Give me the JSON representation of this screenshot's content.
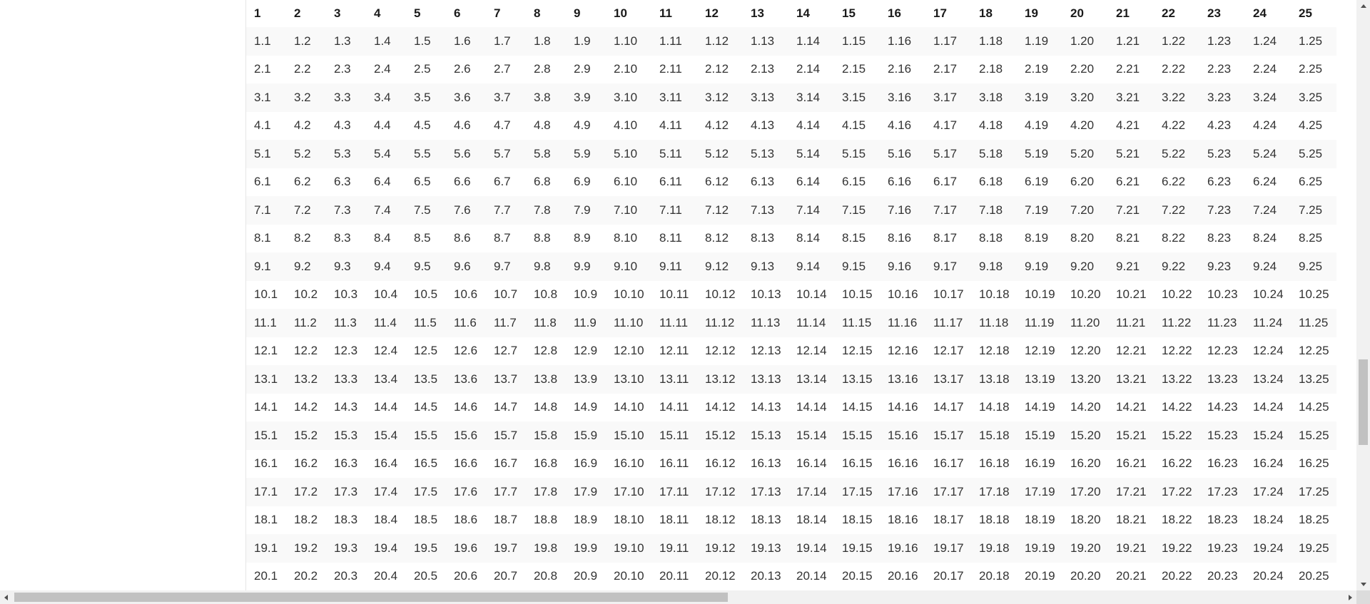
{
  "table": {
    "headers": [
      "1",
      "2",
      "3",
      "4",
      "5",
      "6",
      "7",
      "8",
      "9",
      "10",
      "11",
      "12",
      "13",
      "14",
      "15",
      "16",
      "17",
      "18",
      "19",
      "20",
      "21",
      "22",
      "23",
      "24",
      "25"
    ],
    "rows": [
      [
        "1.1",
        "1.2",
        "1.3",
        "1.4",
        "1.5",
        "1.6",
        "1.7",
        "1.8",
        "1.9",
        "1.10",
        "1.11",
        "1.12",
        "1.13",
        "1.14",
        "1.15",
        "1.16",
        "1.17",
        "1.18",
        "1.19",
        "1.20",
        "1.21",
        "1.22",
        "1.23",
        "1.24",
        "1.25"
      ],
      [
        "2.1",
        "2.2",
        "2.3",
        "2.4",
        "2.5",
        "2.6",
        "2.7",
        "2.8",
        "2.9",
        "2.10",
        "2.11",
        "2.12",
        "2.13",
        "2.14",
        "2.15",
        "2.16",
        "2.17",
        "2.18",
        "2.19",
        "2.20",
        "2.21",
        "2.22",
        "2.23",
        "2.24",
        "2.25"
      ],
      [
        "3.1",
        "3.2",
        "3.3",
        "3.4",
        "3.5",
        "3.6",
        "3.7",
        "3.8",
        "3.9",
        "3.10",
        "3.11",
        "3.12",
        "3.13",
        "3.14",
        "3.15",
        "3.16",
        "3.17",
        "3.18",
        "3.19",
        "3.20",
        "3.21",
        "3.22",
        "3.23",
        "3.24",
        "3.25"
      ],
      [
        "4.1",
        "4.2",
        "4.3",
        "4.4",
        "4.5",
        "4.6",
        "4.7",
        "4.8",
        "4.9",
        "4.10",
        "4.11",
        "4.12",
        "4.13",
        "4.14",
        "4.15",
        "4.16",
        "4.17",
        "4.18",
        "4.19",
        "4.20",
        "4.21",
        "4.22",
        "4.23",
        "4.24",
        "4.25"
      ],
      [
        "5.1",
        "5.2",
        "5.3",
        "5.4",
        "5.5",
        "5.6",
        "5.7",
        "5.8",
        "5.9",
        "5.10",
        "5.11",
        "5.12",
        "5.13",
        "5.14",
        "5.15",
        "5.16",
        "5.17",
        "5.18",
        "5.19",
        "5.20",
        "5.21",
        "5.22",
        "5.23",
        "5.24",
        "5.25"
      ],
      [
        "6.1",
        "6.2",
        "6.3",
        "6.4",
        "6.5",
        "6.6",
        "6.7",
        "6.8",
        "6.9",
        "6.10",
        "6.11",
        "6.12",
        "6.13",
        "6.14",
        "6.15",
        "6.16",
        "6.17",
        "6.18",
        "6.19",
        "6.20",
        "6.21",
        "6.22",
        "6.23",
        "6.24",
        "6.25"
      ],
      [
        "7.1",
        "7.2",
        "7.3",
        "7.4",
        "7.5",
        "7.6",
        "7.7",
        "7.8",
        "7.9",
        "7.10",
        "7.11",
        "7.12",
        "7.13",
        "7.14",
        "7.15",
        "7.16",
        "7.17",
        "7.18",
        "7.19",
        "7.20",
        "7.21",
        "7.22",
        "7.23",
        "7.24",
        "7.25"
      ],
      [
        "8.1",
        "8.2",
        "8.3",
        "8.4",
        "8.5",
        "8.6",
        "8.7",
        "8.8",
        "8.9",
        "8.10",
        "8.11",
        "8.12",
        "8.13",
        "8.14",
        "8.15",
        "8.16",
        "8.17",
        "8.18",
        "8.19",
        "8.20",
        "8.21",
        "8.22",
        "8.23",
        "8.24",
        "8.25"
      ],
      [
        "9.1",
        "9.2",
        "9.3",
        "9.4",
        "9.5",
        "9.6",
        "9.7",
        "9.8",
        "9.9",
        "9.10",
        "9.11",
        "9.12",
        "9.13",
        "9.14",
        "9.15",
        "9.16",
        "9.17",
        "9.18",
        "9.19",
        "9.20",
        "9.21",
        "9.22",
        "9.23",
        "9.24",
        "9.25"
      ],
      [
        "10.1",
        "10.2",
        "10.3",
        "10.4",
        "10.5",
        "10.6",
        "10.7",
        "10.8",
        "10.9",
        "10.10",
        "10.11",
        "10.12",
        "10.13",
        "10.14",
        "10.15",
        "10.16",
        "10.17",
        "10.18",
        "10.19",
        "10.20",
        "10.21",
        "10.22",
        "10.23",
        "10.24",
        "10.25"
      ],
      [
        "11.1",
        "11.2",
        "11.3",
        "11.4",
        "11.5",
        "11.6",
        "11.7",
        "11.8",
        "11.9",
        "11.10",
        "11.11",
        "11.12",
        "11.13",
        "11.14",
        "11.15",
        "11.16",
        "11.17",
        "11.18",
        "11.19",
        "11.20",
        "11.21",
        "11.22",
        "11.23",
        "11.24",
        "11.25"
      ],
      [
        "12.1",
        "12.2",
        "12.3",
        "12.4",
        "12.5",
        "12.6",
        "12.7",
        "12.8",
        "12.9",
        "12.10",
        "12.11",
        "12.12",
        "12.13",
        "12.14",
        "12.15",
        "12.16",
        "12.17",
        "12.18",
        "12.19",
        "12.20",
        "12.21",
        "12.22",
        "12.23",
        "12.24",
        "12.25"
      ],
      [
        "13.1",
        "13.2",
        "13.3",
        "13.4",
        "13.5",
        "13.6",
        "13.7",
        "13.8",
        "13.9",
        "13.10",
        "13.11",
        "13.12",
        "13.13",
        "13.14",
        "13.15",
        "13.16",
        "13.17",
        "13.18",
        "13.19",
        "13.20",
        "13.21",
        "13.22",
        "13.23",
        "13.24",
        "13.25"
      ],
      [
        "14.1",
        "14.2",
        "14.3",
        "14.4",
        "14.5",
        "14.6",
        "14.7",
        "14.8",
        "14.9",
        "14.10",
        "14.11",
        "14.12",
        "14.13",
        "14.14",
        "14.15",
        "14.16",
        "14.17",
        "14.18",
        "14.19",
        "14.20",
        "14.21",
        "14.22",
        "14.23",
        "14.24",
        "14.25"
      ],
      [
        "15.1",
        "15.2",
        "15.3",
        "15.4",
        "15.5",
        "15.6",
        "15.7",
        "15.8",
        "15.9",
        "15.10",
        "15.11",
        "15.12",
        "15.13",
        "15.14",
        "15.15",
        "15.16",
        "15.17",
        "15.18",
        "15.19",
        "15.20",
        "15.21",
        "15.22",
        "15.23",
        "15.24",
        "15.25"
      ],
      [
        "16.1",
        "16.2",
        "16.3",
        "16.4",
        "16.5",
        "16.6",
        "16.7",
        "16.8",
        "16.9",
        "16.10",
        "16.11",
        "16.12",
        "16.13",
        "16.14",
        "16.15",
        "16.16",
        "16.17",
        "16.18",
        "16.19",
        "16.20",
        "16.21",
        "16.22",
        "16.23",
        "16.24",
        "16.25"
      ],
      [
        "17.1",
        "17.2",
        "17.3",
        "17.4",
        "17.5",
        "17.6",
        "17.7",
        "17.8",
        "17.9",
        "17.10",
        "17.11",
        "17.12",
        "17.13",
        "17.14",
        "17.15",
        "17.16",
        "17.17",
        "17.18",
        "17.19",
        "17.20",
        "17.21",
        "17.22",
        "17.23",
        "17.24",
        "17.25"
      ],
      [
        "18.1",
        "18.2",
        "18.3",
        "18.4",
        "18.5",
        "18.6",
        "18.7",
        "18.8",
        "18.9",
        "18.10",
        "18.11",
        "18.12",
        "18.13",
        "18.14",
        "18.15",
        "18.16",
        "18.17",
        "18.18",
        "18.19",
        "18.20",
        "18.21",
        "18.22",
        "18.23",
        "18.24",
        "18.25"
      ],
      [
        "19.1",
        "19.2",
        "19.3",
        "19.4",
        "19.5",
        "19.6",
        "19.7",
        "19.8",
        "19.9",
        "19.10",
        "19.11",
        "19.12",
        "19.13",
        "19.14",
        "19.15",
        "19.16",
        "19.17",
        "19.18",
        "19.19",
        "19.20",
        "19.21",
        "19.22",
        "19.23",
        "19.24",
        "19.25"
      ],
      [
        "20.1",
        "20.2",
        "20.3",
        "20.4",
        "20.5",
        "20.6",
        "20.7",
        "20.8",
        "20.9",
        "20.10",
        "20.11",
        "20.12",
        "20.13",
        "20.14",
        "20.15",
        "20.16",
        "20.17",
        "20.18",
        "20.19",
        "20.20",
        "20.21",
        "20.22",
        "20.23",
        "20.24",
        "20.25"
      ]
    ]
  },
  "icons": {
    "scroll_up": "triangle-up-icon",
    "scroll_down": "triangle-down-icon",
    "scroll_left": "triangle-left-icon",
    "scroll_right": "triangle-right-icon"
  },
  "colors": {
    "row_stripe": "#f9f9f9",
    "scrollbar_track": "#f1f1f1",
    "scrollbar_thumb": "#c1c1c1"
  }
}
